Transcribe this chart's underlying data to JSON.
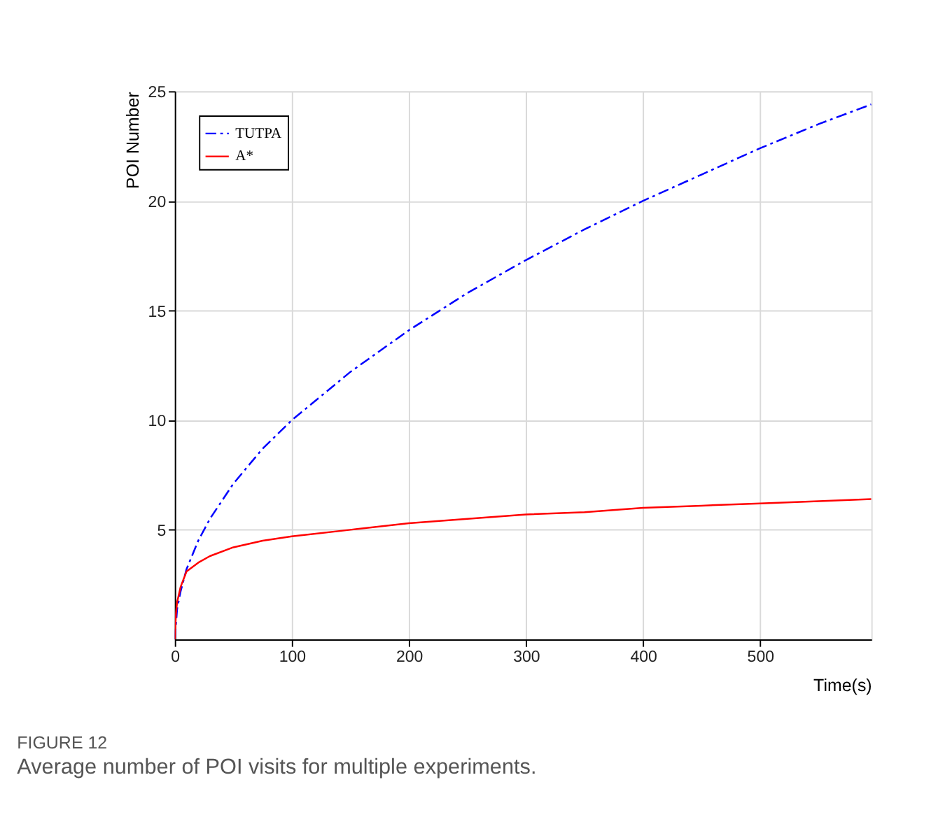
{
  "chart_data": {
    "type": "line",
    "xlabel": "Time(s)",
    "ylabel": "POI Number",
    "title": "FIGURE 12",
    "subtitle": "Average number of POI visits for multiple experiments.",
    "xlim": [
      0,
      595
    ],
    "xticks": [
      0,
      100,
      200,
      300,
      400,
      500
    ],
    "ylim": [
      0,
      25
    ],
    "yticks": [
      5,
      10,
      15,
      20,
      25
    ],
    "grid": true,
    "legend": "top left",
    "marker": "none",
    "series": [
      {
        "name": "TUTPA",
        "color": "#0000ff",
        "line_style": "dashed",
        "x": [
          0,
          2,
          5,
          10,
          20,
          30,
          50,
          75,
          100,
          150,
          200,
          250,
          300,
          350,
          400,
          450,
          500,
          550,
          595
        ],
        "values": [
          0,
          1.4,
          2.2,
          3.2,
          4.5,
          5.5,
          7.1,
          8.7,
          10,
          12.2,
          14.1,
          15.8,
          17.3,
          18.7,
          20,
          21.2,
          22.4,
          23.5,
          24.4
        ]
      },
      {
        "name": "A*",
        "color": "#ff0000",
        "line_style": "solid",
        "x": [
          0,
          1,
          2,
          5,
          10,
          20,
          30,
          50,
          75,
          100,
          150,
          200,
          250,
          300,
          350,
          400,
          450,
          500,
          550,
          595
        ],
        "values": [
          0,
          1.2,
          1.7,
          2.4,
          3.1,
          3.5,
          3.8,
          4.2,
          4.5,
          4.7,
          5.0,
          5.3,
          5.5,
          5.7,
          5.8,
          6.0,
          6.1,
          6.2,
          6.3,
          6.4
        ]
      }
    ]
  }
}
